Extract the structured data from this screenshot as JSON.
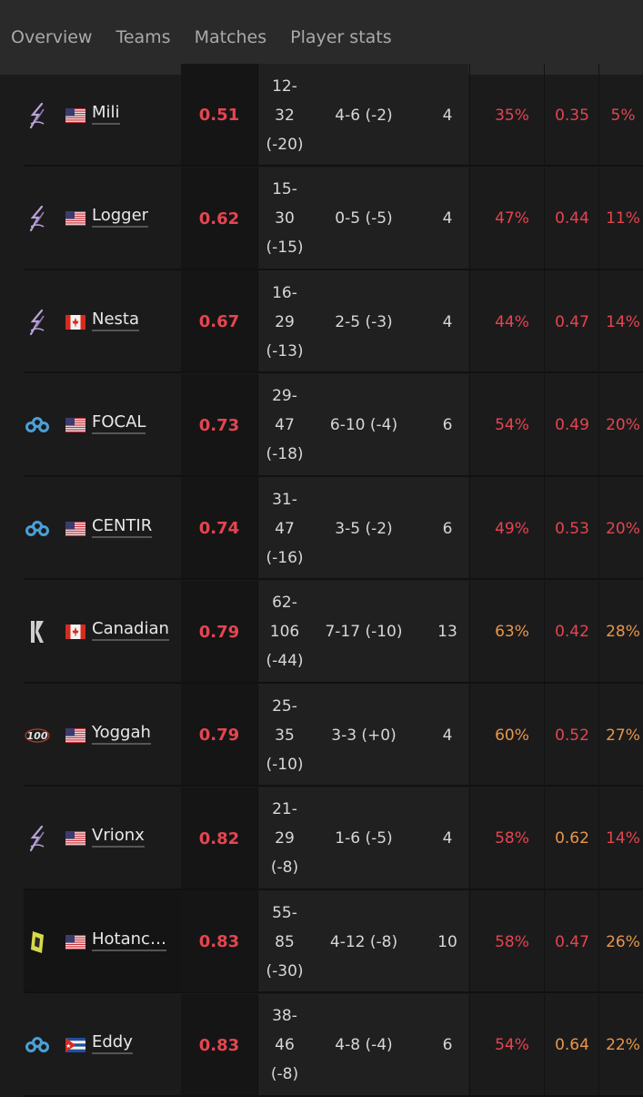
{
  "nav": {
    "tabs": [
      "Overview",
      "Teams",
      "Matches",
      "Player stats"
    ]
  },
  "colors": {
    "bad": "#e5454f",
    "mid": "#e8964b"
  },
  "players": [
    {
      "team_icon": "dallas-fuel-logo-icon",
      "flag": "us",
      "name": "Mili",
      "rating": "0.51",
      "kd": [
        "12-",
        "32",
        "(-20)"
      ],
      "ratio": "4-6 (-2)",
      "maps": "4",
      "pct": "35%",
      "pct_tone": "red",
      "kpr": "0.35",
      "kpr_tone": "red",
      "hs": "5%",
      "hs_tone": "red"
    },
    {
      "team_icon": "dallas-fuel-logo-icon",
      "flag": "us",
      "name": "Logger",
      "rating": "0.62",
      "kd": [
        "15-",
        "30",
        "(-15)"
      ],
      "ratio": "0-5 (-5)",
      "maps": "4",
      "pct": "47%",
      "pct_tone": "red",
      "kpr": "0.44",
      "kpr_tone": "red",
      "hs": "11%",
      "hs_tone": "red"
    },
    {
      "team_icon": "dallas-fuel-logo-icon",
      "flag": "ca",
      "name": "Nesta",
      "rating": "0.67",
      "kd": [
        "16-",
        "29",
        "(-13)"
      ],
      "ratio": "2-5 (-3)",
      "maps": "4",
      "pct": "44%",
      "pct_tone": "red",
      "kpr": "0.47",
      "kpr_tone": "red",
      "hs": "14%",
      "hs_tone": "red"
    },
    {
      "team_icon": "cloud9-logo-icon",
      "flag": "us",
      "name": "FOCAL",
      "rating": "0.73",
      "kd": [
        "29-",
        "47",
        "(-18)"
      ],
      "ratio": "6-10 (-4)",
      "maps": "6",
      "pct": "54%",
      "pct_tone": "red",
      "kpr": "0.49",
      "kpr_tone": "red",
      "hs": "20%",
      "hs_tone": "red"
    },
    {
      "team_icon": "cloud9-logo-icon",
      "flag": "us",
      "name": "CENTIR",
      "rating": "0.74",
      "kd": [
        "31-",
        "47",
        "(-16)"
      ],
      "ratio": "3-5 (-2)",
      "maps": "6",
      "pct": "49%",
      "pct_tone": "red",
      "kpr": "0.53",
      "kpr_tone": "red",
      "hs": "20%",
      "hs_tone": "red"
    },
    {
      "team_icon": "kingdom-logo-icon",
      "flag": "ca",
      "name": "Canadian",
      "rating": "0.79",
      "kd": [
        "62-",
        "106",
        "(-44)"
      ],
      "ratio": "7-17 (-10)",
      "maps": "13",
      "pct": "63%",
      "pct_tone": "orange",
      "kpr": "0.42",
      "kpr_tone": "red",
      "hs": "28%",
      "hs_tone": "orange"
    },
    {
      "team_icon": "100-thieves-logo-icon",
      "flag": "us",
      "name": "Yoggah",
      "rating": "0.79",
      "kd": [
        "25-",
        "35",
        "(-10)"
      ],
      "ratio": "3-3 (+0)",
      "maps": "4",
      "pct": "60%",
      "pct_tone": "orange",
      "kpr": "0.52",
      "kpr_tone": "red",
      "hs": "27%",
      "hs_tone": "orange"
    },
    {
      "team_icon": "dallas-fuel-logo-icon",
      "flag": "us",
      "name": "Vrionx",
      "rating": "0.82",
      "kd": [
        "21-",
        "29",
        "(-8)"
      ],
      "ratio": "1-6 (-5)",
      "maps": "4",
      "pct": "58%",
      "pct_tone": "red",
      "kpr": "0.62",
      "kpr_tone": "orange",
      "hs": "14%",
      "hs_tone": "red"
    },
    {
      "team_icon": "rebel-logo-icon",
      "flag": "us",
      "name": "Hotanc…",
      "rating": "0.83",
      "kd": [
        "55-",
        "85",
        "(-30)"
      ],
      "ratio": "4-12 (-8)",
      "maps": "10",
      "pct": "58%",
      "pct_tone": "red",
      "kpr": "0.47",
      "kpr_tone": "red",
      "hs": "26%",
      "hs_tone": "orange"
    },
    {
      "team_icon": "cloud9-logo-icon",
      "flag": "cu",
      "name": "Eddy",
      "rating": "0.83",
      "kd": [
        "38-",
        "46",
        "(-8)"
      ],
      "ratio": "4-8 (-4)",
      "maps": "6",
      "pct": "54%",
      "pct_tone": "red",
      "kpr": "0.64",
      "kpr_tone": "orange",
      "hs": "22%",
      "hs_tone": "orange"
    }
  ]
}
